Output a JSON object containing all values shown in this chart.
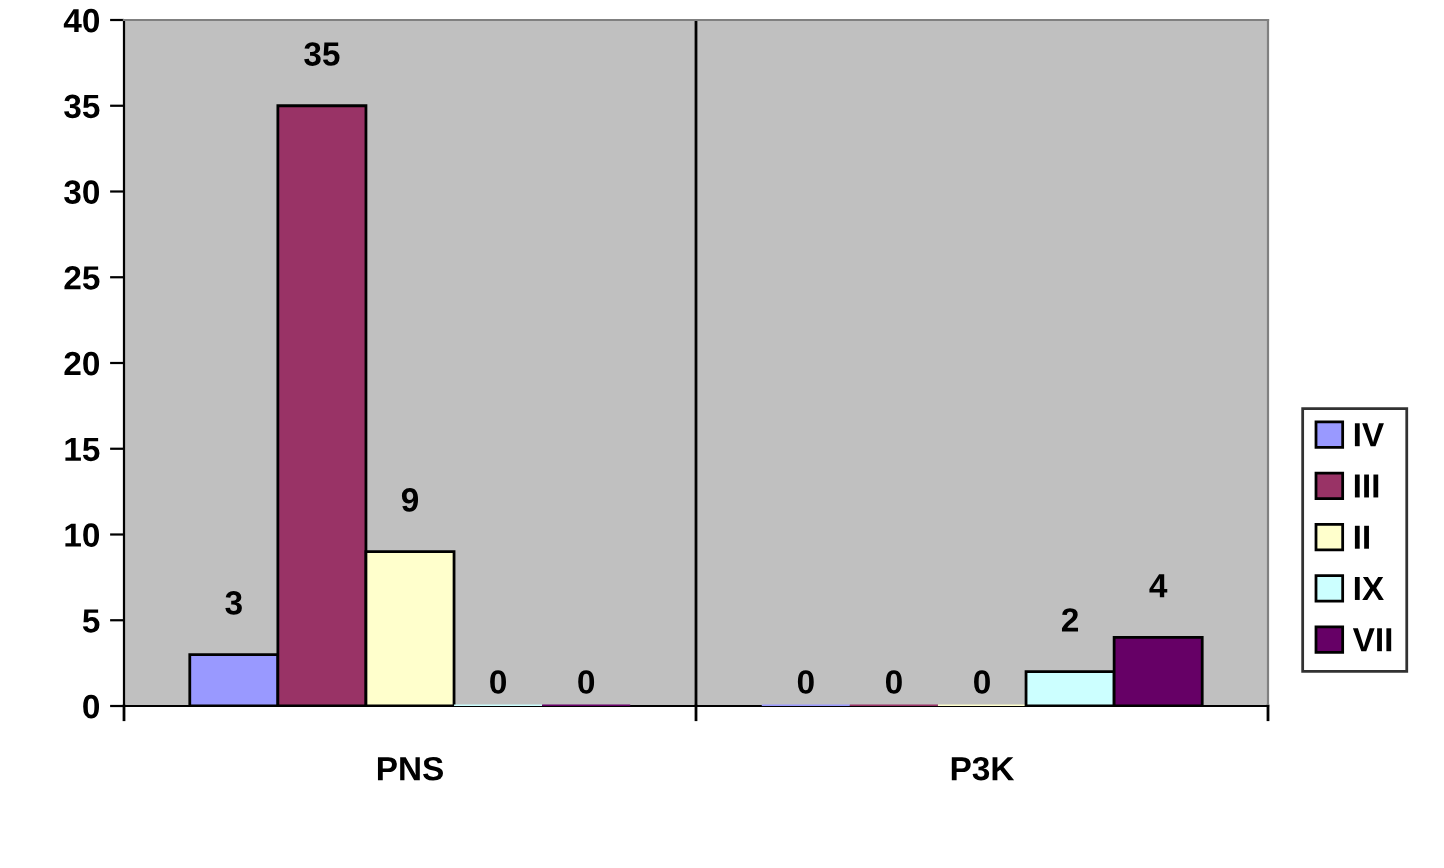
{
  "chart_data": {
    "type": "bar",
    "categories": [
      "PNS",
      "P3K"
    ],
    "series": [
      {
        "name": "IV",
        "color": "#9999ff",
        "values": [
          3,
          0
        ]
      },
      {
        "name": "III",
        "color": "#993366",
        "values": [
          35,
          0
        ]
      },
      {
        "name": "II",
        "color": "#ffffcc",
        "values": [
          9,
          0
        ]
      },
      {
        "name": "IX",
        "color": "#ccffff",
        "values": [
          0,
          2
        ]
      },
      {
        "name": "VII",
        "color": "#660066",
        "values": [
          0,
          4
        ]
      }
    ],
    "ylim": [
      0,
      40
    ],
    "yticks": [
      0,
      5,
      10,
      15,
      20,
      25,
      30,
      35,
      40
    ],
    "grid": "x",
    "legend": "right",
    "data_labels": true
  }
}
